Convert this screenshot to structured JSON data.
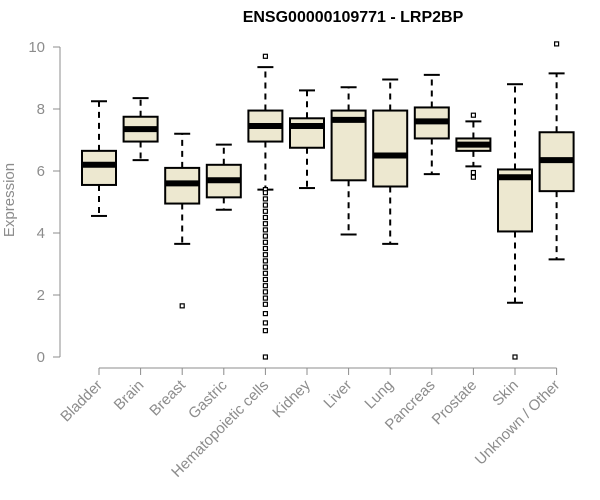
{
  "chart_data": {
    "type": "boxplot",
    "title": "ENSG00000109771 - LRP2BP",
    "xlabel": "",
    "ylabel": "Expression",
    "ylim": [
      0,
      10
    ],
    "yticks": [
      "0",
      "2",
      "4",
      "6",
      "8",
      "10"
    ],
    "box_color": "#ede8d0",
    "categories": [
      "Bladder",
      "Brain",
      "Breast",
      "Gastric",
      "Hematopoietic cells",
      "Kidney",
      "Liver",
      "Lung",
      "Pancreas",
      "Prostate",
      "Skin",
      "Unknown / Other"
    ],
    "boxes": [
      {
        "category": "Bladder",
        "whisker_low": 4.55,
        "q1": 5.55,
        "median": 6.2,
        "q3": 6.65,
        "whisker_high": 8.25,
        "outliers": []
      },
      {
        "category": "Brain",
        "whisker_low": 6.35,
        "q1": 6.95,
        "median": 7.35,
        "q3": 7.75,
        "whisker_high": 8.35,
        "outliers": []
      },
      {
        "category": "Breast",
        "whisker_low": 3.65,
        "q1": 4.95,
        "median": 5.6,
        "q3": 6.1,
        "whisker_high": 7.2,
        "outliers": [
          1.65
        ]
      },
      {
        "category": "Gastric",
        "whisker_low": 4.75,
        "q1": 5.15,
        "median": 5.7,
        "q3": 6.2,
        "whisker_high": 6.85,
        "outliers": []
      },
      {
        "category": "Hematopoietic cells",
        "whisker_low": 5.4,
        "q1": 6.95,
        "median": 7.45,
        "q3": 7.95,
        "whisker_high": 9.35,
        "outliers": [
          9.7,
          5.4,
          5.3,
          5.1,
          4.9,
          4.7,
          4.5,
          4.3,
          4.1,
          3.9,
          3.7,
          3.5,
          3.3,
          3.1,
          2.9,
          2.7,
          2.5,
          2.3,
          2.1,
          1.9,
          1.7,
          1.4,
          1.1,
          0.85,
          0.0
        ]
      },
      {
        "category": "Kidney",
        "whisker_low": 5.45,
        "q1": 6.75,
        "median": 7.45,
        "q3": 7.7,
        "whisker_high": 8.6,
        "outliers": []
      },
      {
        "category": "Liver",
        "whisker_low": 3.95,
        "q1": 5.7,
        "median": 7.65,
        "q3": 7.95,
        "whisker_high": 8.7,
        "outliers": []
      },
      {
        "category": "Lung",
        "whisker_low": 3.65,
        "q1": 5.5,
        "median": 6.5,
        "q3": 7.95,
        "whisker_high": 8.95,
        "outliers": []
      },
      {
        "category": "Pancreas",
        "whisker_low": 5.9,
        "q1": 7.05,
        "median": 7.6,
        "q3": 8.05,
        "whisker_high": 9.1,
        "outliers": []
      },
      {
        "category": "Prostate",
        "whisker_low": 6.15,
        "q1": 6.65,
        "median": 6.85,
        "q3": 7.05,
        "whisker_high": 7.6,
        "outliers": [
          7.8,
          5.95,
          5.8
        ]
      },
      {
        "category": "Skin",
        "whisker_low": 1.75,
        "q1": 4.05,
        "median": 5.8,
        "q3": 6.05,
        "whisker_high": 8.8,
        "outliers": [
          0.0
        ]
      },
      {
        "category": "Unknown / Other",
        "whisker_low": 3.15,
        "q1": 5.35,
        "median": 6.35,
        "q3": 7.25,
        "whisker_high": 9.15,
        "outliers": [
          10.1
        ]
      }
    ]
  }
}
